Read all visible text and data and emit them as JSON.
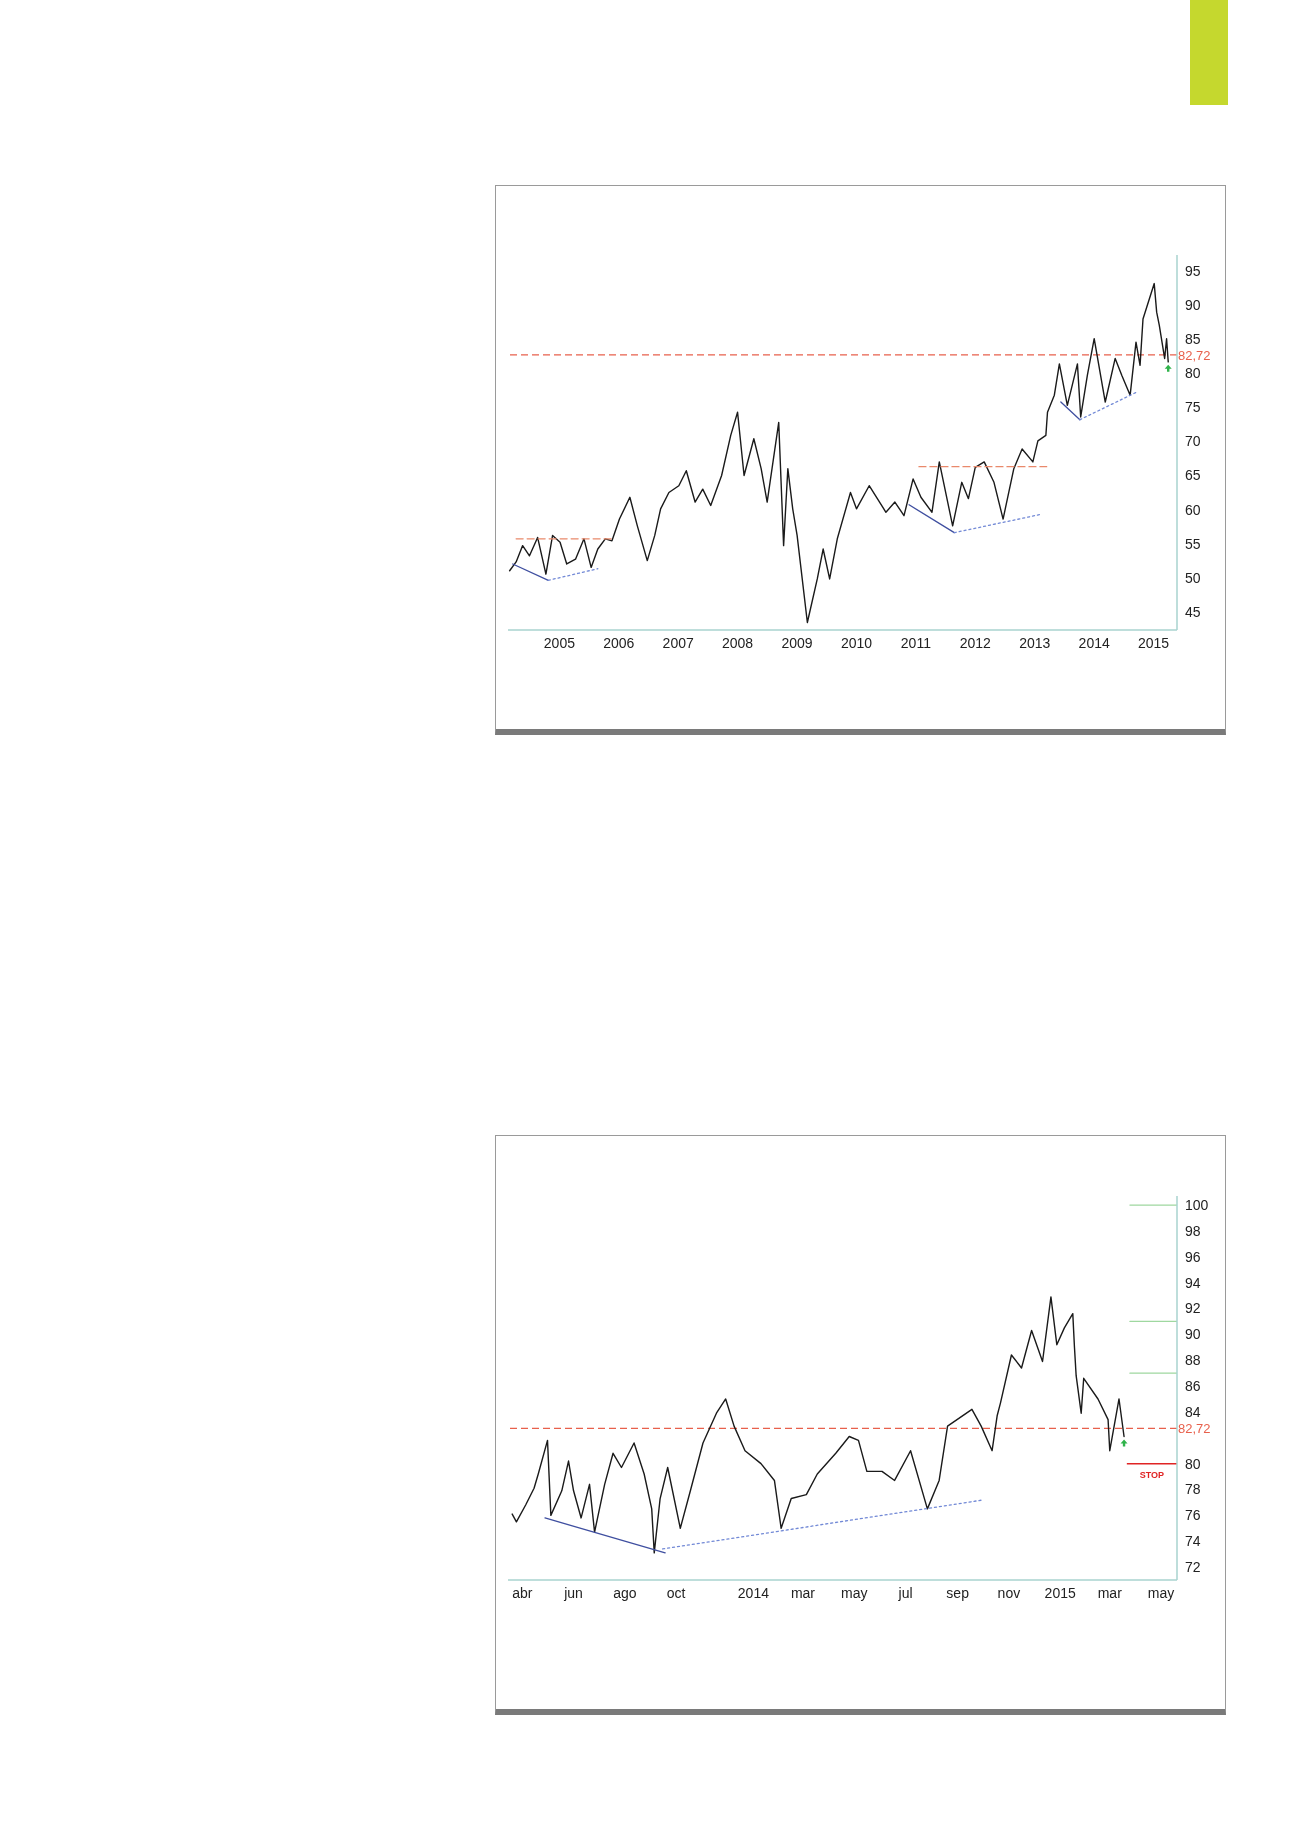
{
  "chart_data": [
    {
      "type": "line",
      "xlim": [
        "2004-02-20",
        "2015-05-25"
      ],
      "ylim": [
        42.3,
        97.4
      ],
      "xticks": [
        {
          "value": "2005-01-01",
          "label": "2005"
        },
        {
          "value": "2006-01-01",
          "label": "2006"
        },
        {
          "value": "2007-01-01",
          "label": "2007"
        },
        {
          "value": "2008-01-01",
          "label": "2008"
        },
        {
          "value": "2009-01-01",
          "label": "2009"
        },
        {
          "value": "2010-01-01",
          "label": "2010"
        },
        {
          "value": "2011-01-01",
          "label": "2011"
        },
        {
          "value": "2012-01-01",
          "label": "2012"
        },
        {
          "value": "2013-01-01",
          "label": "2013"
        },
        {
          "value": "2014-01-01",
          "label": "2014"
        },
        {
          "value": "2015-01-01",
          "label": "2015"
        }
      ],
      "yticks": [
        45,
        50,
        55,
        60,
        65,
        70,
        75,
        80,
        85,
        90,
        95
      ],
      "series": [
        {
          "color": "#1a1a1a",
          "x": [
            "2004-03-01",
            "2004-04-10",
            "2004-05-20",
            "2004-07-01",
            "2004-08-20",
            "2004-10-10",
            "2004-11-20",
            "2005-01-05",
            "2005-02-15",
            "2005-04-10",
            "2005-06-01",
            "2005-07-15",
            "2005-08-25",
            "2005-10-10",
            "2005-11-20",
            "2006-01-05",
            "2006-03-10",
            "2006-04-25",
            "2006-06-25",
            "2006-08-10",
            "2006-09-15",
            "2006-11-05",
            "2007-01-05",
            "2007-02-20",
            "2007-04-15",
            "2007-06-01",
            "2007-07-20",
            "2007-09-25",
            "2007-11-20",
            "2008-01-01",
            "2008-02-10",
            "2008-04-10",
            "2008-05-25",
            "2008-07-01",
            "2008-09-10",
            "2008-10-10",
            "2008-11-05",
            "2008-12-05",
            "2009-01-01",
            "2009-03-05",
            "2009-05-05",
            "2009-06-10",
            "2009-07-20",
            "2009-09-05",
            "2009-11-25",
            "2010-01-01",
            "2010-03-20",
            "2010-07-01",
            "2010-08-25",
            "2010-10-20",
            "2010-12-15",
            "2011-02-01",
            "2011-04-10",
            "2011-05-25",
            "2011-08-15",
            "2011-10-10",
            "2011-11-20",
            "2012-01-01",
            "2012-02-25",
            "2012-04-25",
            "2012-06-20",
            "2012-08-25",
            "2012-10-15",
            "2012-12-20",
            "2013-01-20",
            "2013-03-10",
            "2013-03-20",
            "2013-05-01",
            "2013-06-01",
            "2013-07-20",
            "2013-09-20",
            "2013-10-10",
            "2013-11-20",
            "2014-01-01",
            "2014-03-10",
            "2014-05-10",
            "2014-06-20",
            "2014-08-10",
            "2014-09-15",
            "2014-10-10",
            "2014-10-28",
            "2015-01-05",
            "2015-01-20",
            "2015-02-05",
            "2015-03-10",
            "2015-03-22",
            "2015-04-01"
          ],
          "values": [
            51.0,
            52.3,
            54.7,
            53.2,
            55.9,
            50.5,
            56.2,
            55.2,
            52.0,
            52.7,
            55.7,
            51.5,
            54.2,
            55.7,
            55.4,
            58.6,
            61.8,
            57.6,
            52.5,
            56.2,
            60.1,
            62.5,
            63.5,
            65.7,
            61.1,
            63.0,
            60.6,
            65.0,
            70.9,
            74.3,
            65.0,
            70.4,
            66.0,
            61.1,
            72.8,
            54.7,
            66.0,
            60.1,
            56.2,
            43.4,
            49.8,
            54.2,
            49.8,
            55.7,
            62.5,
            60.1,
            63.5,
            59.6,
            61.1,
            59.1,
            64.5,
            61.8,
            59.6,
            67.0,
            57.6,
            64.0,
            61.6,
            66.2,
            67.0,
            64.0,
            58.6,
            66.0,
            68.9,
            67.0,
            70.1,
            70.9,
            74.3,
            76.8,
            81.4,
            75.3,
            81.4,
            73.6,
            79.7,
            85.1,
            75.8,
            82.2,
            79.7,
            76.8,
            84.6,
            81.2,
            88.0,
            93.2,
            89.0,
            87.1,
            82.2,
            85.1,
            81.7
          ]
        },
        {
          "color": "#e9896b",
          "line_style": "dashed",
          "x": [
            "2004-04-10",
            "2005-11-15"
          ],
          "values": [
            55.7,
            55.7
          ]
        },
        {
          "color": "#3f4fa0",
          "x": [
            "2004-03-20",
            "2004-10-25"
          ],
          "values": [
            52.0,
            49.6
          ]
        },
        {
          "color": "#7289d6",
          "line_style": "dotted",
          "x": [
            "2004-10-25",
            "2005-08-25"
          ],
          "values": [
            49.6,
            51.3
          ]
        },
        {
          "color": "#e9896b",
          "line_style": "dashed",
          "x": [
            "2011-01-20",
            "2013-03-15"
          ],
          "values": [
            66.3,
            66.3
          ]
        },
        {
          "color": "#3f4fa0",
          "x": [
            "2010-11-20",
            "2011-08-25"
          ],
          "values": [
            60.7,
            56.6
          ]
        },
        {
          "color": "#7289d6",
          "line_style": "dotted",
          "x": [
            "2011-08-25",
            "2013-02-10"
          ],
          "values": [
            56.6,
            59.3
          ]
        },
        {
          "color": "#3f4fa0",
          "x": [
            "2013-06-10",
            "2013-10-05"
          ],
          "values": [
            75.8,
            73.2
          ]
        },
        {
          "color": "#7289d6",
          "line_style": "dotted",
          "x": [
            "2013-10-05",
            "2014-09-15"
          ],
          "values": [
            73.2,
            77.2
          ]
        }
      ],
      "ref_lines": [
        {
          "axis": "y",
          "value": 82.72,
          "label": "82,72",
          "color": "#e8604c",
          "line_style": "dashed"
        }
      ]
    },
    {
      "type": "line",
      "xlim": [
        "2013-03-15",
        "2015-05-20"
      ],
      "ylim": [
        71,
        100.7
      ],
      "xticks": [
        {
          "value": "2013-04-01",
          "label": "abr"
        },
        {
          "value": "2013-06-01",
          "label": "jun"
        },
        {
          "value": "2013-08-01",
          "label": "ago"
        },
        {
          "value": "2013-10-01",
          "label": "oct"
        },
        {
          "value": "2014-01-01",
          "label": "2014"
        },
        {
          "value": "2014-03-01",
          "label": "mar"
        },
        {
          "value": "2014-05-01",
          "label": "may"
        },
        {
          "value": "2014-07-01",
          "label": "jul"
        },
        {
          "value": "2014-09-01",
          "label": "sep"
        },
        {
          "value": "2014-11-01",
          "label": "nov"
        },
        {
          "value": "2015-01-01",
          "label": "2015"
        },
        {
          "value": "2015-03-01",
          "label": "mar"
        },
        {
          "value": "2015-05-01",
          "label": "may"
        }
      ],
      "yticks": [
        72,
        74,
        76,
        78,
        80,
        84,
        86,
        88,
        90,
        92,
        94,
        96,
        98,
        100
      ],
      "series": [
        {
          "color": "#1a1a1a",
          "x": [
            "2013-03-20",
            "2013-03-25",
            "2013-04-05",
            "2013-04-15",
            "2013-04-20",
            "2013-05-01",
            "2013-05-05",
            "2013-05-18",
            "2013-05-26",
            "2013-06-01",
            "2013-06-10",
            "2013-06-20",
            "2013-06-26",
            "2013-07-08",
            "2013-07-18",
            "2013-07-28",
            "2013-08-12",
            "2013-08-24",
            "2013-09-02",
            "2013-09-05",
            "2013-09-12",
            "2013-09-21",
            "2013-10-06",
            "2013-10-18",
            "2013-11-02",
            "2013-11-18",
            "2013-11-29",
            "2013-12-09",
            "2013-12-22",
            "2014-01-10",
            "2014-01-26",
            "2014-02-03",
            "2014-02-15",
            "2014-03-05",
            "2014-03-18",
            "2014-04-09",
            "2014-04-25",
            "2014-05-06",
            "2014-05-16",
            "2014-06-03",
            "2014-06-18",
            "2014-07-07",
            "2014-07-27",
            "2014-08-10",
            "2014-08-20",
            "2014-09-18",
            "2014-09-29",
            "2014-10-12",
            "2014-10-18",
            "2014-10-22",
            "2014-11-04",
            "2014-11-16",
            "2014-11-28",
            "2014-12-11",
            "2014-12-21",
            "2014-12-28",
            "2015-01-06",
            "2015-01-16",
            "2015-01-18",
            "2015-01-20",
            "2015-01-26",
            "2015-01-29",
            "2015-02-15",
            "2015-02-27",
            "2015-03-01",
            "2015-03-12",
            "2015-03-18"
          ],
          "values": [
            76.1,
            75.5,
            76.8,
            78.1,
            79.2,
            81.8,
            76.0,
            77.9,
            80.2,
            77.9,
            75.8,
            78.4,
            74.7,
            78.4,
            80.8,
            79.7,
            81.6,
            79.2,
            76.5,
            73.1,
            77.3,
            79.7,
            75.0,
            77.9,
            81.6,
            83.9,
            85.0,
            82.9,
            81.0,
            80.0,
            78.7,
            75.0,
            77.3,
            77.6,
            79.2,
            80.8,
            82.1,
            81.8,
            79.4,
            79.4,
            78.7,
            81.0,
            76.5,
            78.7,
            82.9,
            84.2,
            82.9,
            81.0,
            83.7,
            84.7,
            88.4,
            87.4,
            90.3,
            87.9,
            92.9,
            89.2,
            90.5,
            91.6,
            89.0,
            86.8,
            83.9,
            86.6,
            85.0,
            83.4,
            81.0,
            85.0,
            82.1
          ]
        },
        {
          "color": "#3f4fa0",
          "x": [
            "2013-04-28",
            "2013-09-18"
          ],
          "values": [
            75.8,
            73.1
          ]
        },
        {
          "color": "#7289d6",
          "line_style": "dotted",
          "x": [
            "2013-09-15",
            "2014-10-02"
          ],
          "values": [
            73.4,
            77.2
          ]
        },
        {
          "color": "#9fd8a0",
          "x": [
            "2015-03-25",
            "2015-05-20"
          ],
          "values": [
            100,
            100
          ]
        },
        {
          "color": "#9fd8a0",
          "x": [
            "2015-03-25",
            "2015-05-20"
          ],
          "values": [
            91,
            91
          ]
        },
        {
          "color": "#9fd8a0",
          "x": [
            "2015-03-25",
            "2015-05-20"
          ],
          "values": [
            87,
            87
          ]
        }
      ],
      "ref_lines": [
        {
          "axis": "y",
          "value": 82.72,
          "label": "82,72",
          "color": "#e8604c",
          "line_style": "dashed"
        },
        {
          "axis": "y",
          "value": 80,
          "label": "STOP",
          "color": "#e02424"
        }
      ]
    }
  ]
}
